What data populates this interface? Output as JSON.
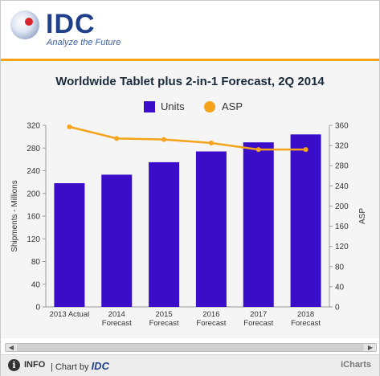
{
  "header": {
    "logo_text": "IDC",
    "tagline": "Analyze the Future"
  },
  "chart_data": {
    "type": "bar",
    "title": "Worldwide Tablet plus 2-in-1 Forecast, 2Q 2014",
    "categories": [
      [
        "2013 Actual"
      ],
      [
        "2014",
        "Forecast"
      ],
      [
        "2015",
        "Forecast"
      ],
      [
        "2016",
        "Forecast"
      ],
      [
        "2017",
        "Forecast"
      ],
      [
        "2018",
        "Forecast"
      ]
    ],
    "series": [
      {
        "name": "Units",
        "type": "bar",
        "axis": "left",
        "color": "#3a0ec9",
        "values": [
          218,
          233,
          255,
          274,
          290,
          304
        ]
      },
      {
        "name": "ASP",
        "type": "line",
        "axis": "right",
        "color": "#f5a31a",
        "values": [
          357,
          334,
          332,
          325,
          312,
          312
        ]
      }
    ],
    "ylabel": "Shipments - Millions",
    "y2label": "ASP",
    "ylim": [
      0,
      320
    ],
    "y2lim": [
      0,
      360
    ],
    "yticks": [
      0,
      40,
      80,
      120,
      160,
      200,
      240,
      280,
      320
    ],
    "y2ticks": [
      0,
      40,
      80,
      120,
      160,
      200,
      240,
      280,
      320,
      360
    ],
    "legend": "top-center",
    "grid": false
  },
  "footer": {
    "info_label": "INFO",
    "chart_by_prefix": "| Chart by",
    "chart_by_brand": "IDC",
    "provider": "iCharts"
  }
}
